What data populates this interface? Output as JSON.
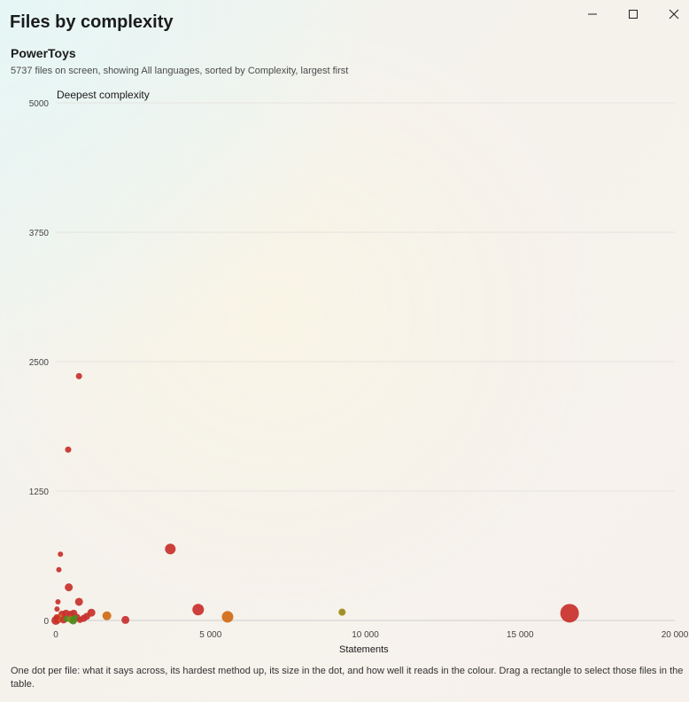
{
  "window": {
    "title": "Files by complexity",
    "controls": {
      "minimize_icon": "minimize-icon",
      "maximize_icon": "maximize-icon",
      "close_icon": "close-icon"
    }
  },
  "project": "PowerToys",
  "subtitle": "5737 files on screen, showing All languages, sorted by Complexity, largest first",
  "chart_data": {
    "type": "scatter",
    "ylabel": "Deepest complexity",
    "xlabel": "Statements",
    "xlim": [
      0,
      20000
    ],
    "ylim": [
      0,
      5000
    ],
    "x_ticks": [
      0,
      5000,
      10000,
      15000,
      20000
    ],
    "x_tick_labels": [
      "0",
      "5 000",
      "10 000",
      "15 000",
      "20 000"
    ],
    "y_ticks": [
      0,
      1250,
      2500,
      3750,
      5000
    ],
    "y_tick_labels": [
      "0",
      "1250",
      "2500",
      "3750",
      "5000"
    ],
    "grid": "horizontal",
    "colors": {
      "red": "#c8302b",
      "orange": "#d06a12",
      "olive": "#9a8a10",
      "green": "#4f8a1f"
    },
    "points": [
      {
        "x": 750,
        "y": 2360,
        "size": 3.5,
        "color": "#c8302b"
      },
      {
        "x": 400,
        "y": 1650,
        "size": 3.5,
        "color": "#c8302b"
      },
      {
        "x": 3700,
        "y": 690,
        "size": 6,
        "color": "#c8302b"
      },
      {
        "x": 150,
        "y": 640,
        "size": 3,
        "color": "#c8302b"
      },
      {
        "x": 100,
        "y": 490,
        "size": 3,
        "color": "#c8302b"
      },
      {
        "x": 420,
        "y": 320,
        "size": 4.5,
        "color": "#c8302b"
      },
      {
        "x": 70,
        "y": 180,
        "size": 3,
        "color": "#c8302b"
      },
      {
        "x": 750,
        "y": 180,
        "size": 4.5,
        "color": "#c8302b"
      },
      {
        "x": 40,
        "y": 110,
        "size": 3,
        "color": "#c8302b"
      },
      {
        "x": 4600,
        "y": 105,
        "size": 6.5,
        "color": "#c8302b"
      },
      {
        "x": 16600,
        "y": 70,
        "size": 10.5,
        "color": "#c8302b"
      },
      {
        "x": 9250,
        "y": 80,
        "size": 4,
        "color": "#9a8a10"
      },
      {
        "x": 5550,
        "y": 35,
        "size": 6.5,
        "color": "#d06a12"
      },
      {
        "x": 1650,
        "y": 45,
        "size": 5,
        "color": "#d06a12"
      },
      {
        "x": 1150,
        "y": 75,
        "size": 4.5,
        "color": "#c8302b"
      },
      {
        "x": 2250,
        "y": 5,
        "size": 4.5,
        "color": "#c8302b"
      },
      {
        "x": 200,
        "y": 60,
        "size": 4,
        "color": "#c8302b"
      },
      {
        "x": 330,
        "y": 70,
        "size": 4,
        "color": "#c8302b"
      },
      {
        "x": 480,
        "y": 60,
        "size": 4,
        "color": "#c8302b"
      },
      {
        "x": 580,
        "y": 70,
        "size": 4,
        "color": "#c8302b"
      },
      {
        "x": 680,
        "y": 30,
        "size": 4,
        "color": "#c8302b"
      },
      {
        "x": 900,
        "y": 20,
        "size": 4,
        "color": "#c8302b"
      },
      {
        "x": 1000,
        "y": 40,
        "size": 4,
        "color": "#c8302b"
      },
      {
        "x": 0,
        "y": 0,
        "size": 5,
        "color": "#c8302b"
      },
      {
        "x": 60,
        "y": 10,
        "size": 4.5,
        "color": "#c8302b"
      },
      {
        "x": 120,
        "y": 25,
        "size": 4,
        "color": "#d06a12"
      },
      {
        "x": 250,
        "y": 5,
        "size": 4,
        "color": "#c8302b"
      },
      {
        "x": 350,
        "y": 15,
        "size": 3.5,
        "color": "#4f8a1f"
      },
      {
        "x": 500,
        "y": 8,
        "size": 4,
        "color": "#9a8a10"
      },
      {
        "x": 560,
        "y": 0,
        "size": 4.5,
        "color": "#4f8a1f"
      },
      {
        "x": 620,
        "y": 20,
        "size": 4,
        "color": "#4f8a1f"
      },
      {
        "x": 780,
        "y": 5,
        "size": 3.5,
        "color": "#c8302b"
      },
      {
        "x": 30,
        "y": 30,
        "size": 3.5,
        "color": "#c8302b"
      }
    ]
  },
  "footer": "One dot per file: what it says across, its hardest method up, its size in the dot, and how well it reads in the colour. Drag a rectangle to select those files in the table."
}
